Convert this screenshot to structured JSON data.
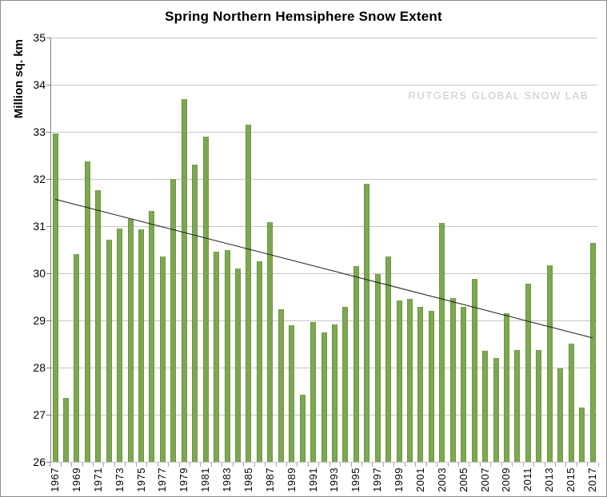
{
  "chart_data": {
    "type": "bar",
    "title": "Spring Northern Hemsiphere Snow Extent",
    "ylabel": "Million sq. km",
    "xlabel": "",
    "ylim": [
      26,
      35
    ],
    "yticks": [
      26,
      27,
      28,
      29,
      30,
      31,
      32,
      33,
      34,
      35
    ],
    "grid": true,
    "legend": false,
    "annotation": "RUTGERS GLOBAL SNOW LAB",
    "categories": [
      1967,
      1968,
      1969,
      1970,
      1971,
      1972,
      1973,
      1974,
      1975,
      1976,
      1977,
      1978,
      1979,
      1980,
      1981,
      1982,
      1983,
      1984,
      1985,
      1986,
      1987,
      1988,
      1989,
      1990,
      1991,
      1992,
      1993,
      1994,
      1995,
      1996,
      1997,
      1998,
      1999,
      2000,
      2001,
      2002,
      2003,
      2004,
      2005,
      2006,
      2007,
      2008,
      2009,
      2010,
      2011,
      2012,
      2013,
      2014,
      2015,
      2016,
      2017
    ],
    "values": [
      32.97,
      27.35,
      30.4,
      32.37,
      31.76,
      30.72,
      30.95,
      31.15,
      30.94,
      31.32,
      30.35,
      32.0,
      33.7,
      32.3,
      32.9,
      30.45,
      30.5,
      30.1,
      33.15,
      30.26,
      31.08,
      29.24,
      28.89,
      27.43,
      28.97,
      28.75,
      28.92,
      29.28,
      30.15,
      31.9,
      29.98,
      30.35,
      29.43,
      29.46,
      29.29,
      29.2,
      31.07,
      29.47,
      29.29,
      29.88,
      28.35,
      28.2,
      29.15,
      28.37,
      29.78,
      28.37,
      30.17,
      27.98,
      28.51,
      27.15,
      30.64
    ],
    "x_tick_labels": [
      1967,
      1969,
      1971,
      1973,
      1975,
      1977,
      1979,
      1981,
      1983,
      1985,
      1987,
      1989,
      1991,
      1993,
      1995,
      1997,
      1999,
      2001,
      2003,
      2005,
      2007,
      2009,
      2011,
      2013,
      2015,
      2017
    ],
    "trend_line": {
      "start_year": 1967,
      "start_value": 31.57,
      "end_year": 2017,
      "end_value": 28.63
    },
    "colors": {
      "bar": "#7DA850",
      "bar_border": "#6C9442",
      "grid": "#C6C6C6",
      "axis": "#808080",
      "tick": "#A6A6A6",
      "trend": "#1A1A1A",
      "watermark": "#C8C8C8",
      "title": "#000000"
    }
  }
}
